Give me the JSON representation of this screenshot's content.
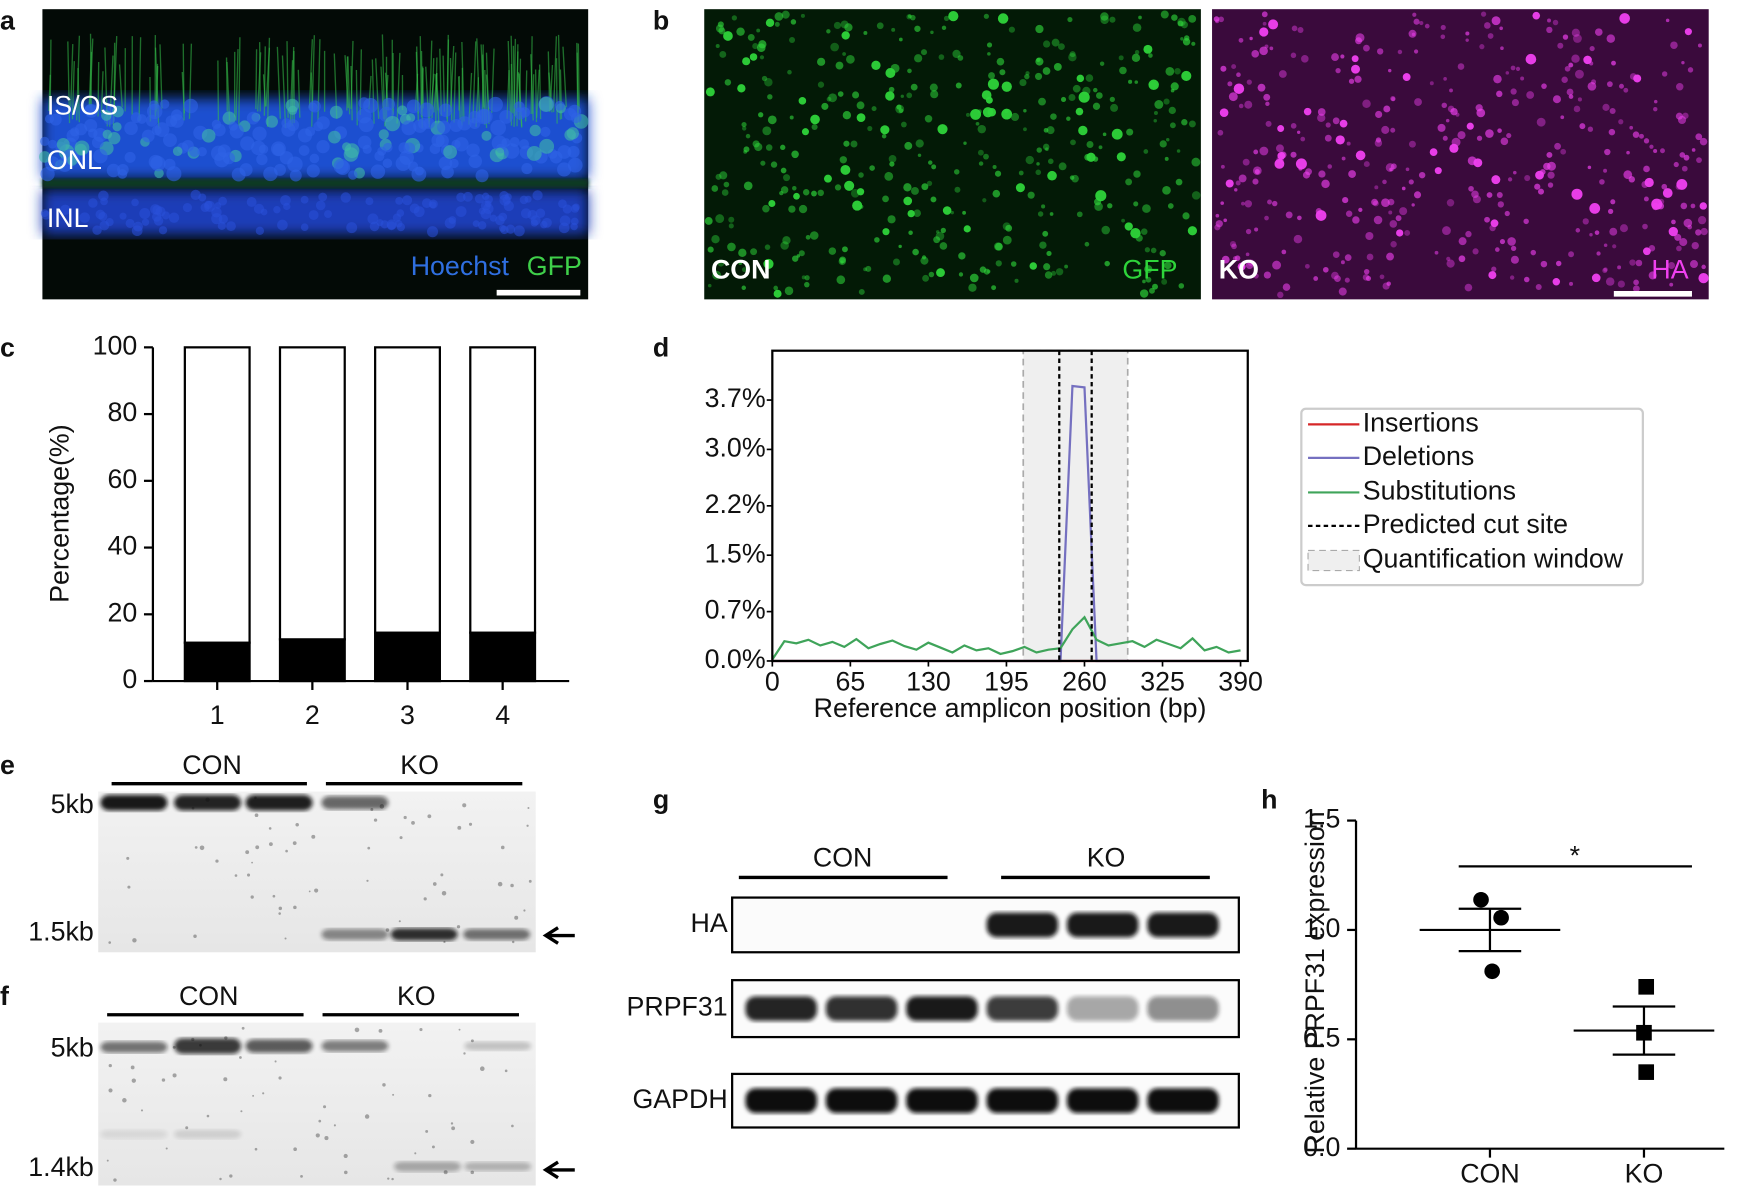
{
  "panels": {
    "a": {
      "label": "a",
      "layers": [
        "IS/OS",
        "ONL",
        "INL"
      ],
      "stains": [
        "Hoechst",
        "GFP"
      ]
    },
    "b": {
      "label": "b",
      "left": {
        "group": "CON",
        "stain": "GFP"
      },
      "right": {
        "group": "KO",
        "stain": "HA"
      }
    },
    "e": {
      "label": "e",
      "groups": [
        "CON",
        "KO"
      ],
      "markers": [
        "5kb",
        "1.5kb"
      ]
    },
    "f": {
      "label": "f",
      "groups": [
        "CON",
        "KO"
      ],
      "markers": [
        "5kb",
        "1.4kb"
      ]
    },
    "g": {
      "label": "g",
      "groups": [
        "CON",
        "KO"
      ],
      "rows": [
        "HA",
        "PRPF31",
        "GAPDH"
      ]
    }
  },
  "chart_data": [
    {
      "type": "bar",
      "panel": "c",
      "ylabel": "Percentage(%)",
      "categories": [
        "1",
        "2",
        "3",
        "4"
      ],
      "series": [
        {
          "color": "#000000",
          "values": [
            11.5,
            12.5,
            14.5,
            14.5
          ]
        },
        {
          "color": "#ffffff",
          "values": [
            88.5,
            87.5,
            85.5,
            85.5
          ]
        }
      ],
      "ylim": [
        0,
        100
      ],
      "yticks": [
        0,
        20,
        40,
        60,
        80,
        100
      ]
    },
    {
      "type": "line",
      "panel": "d",
      "xlabel": "Reference amplicon position (bp)",
      "x": [
        0,
        10,
        20,
        30,
        40,
        50,
        60,
        70,
        80,
        90,
        100,
        110,
        120,
        130,
        140,
        150,
        160,
        170,
        180,
        190,
        200,
        210,
        220,
        230,
        240,
        250,
        260,
        270,
        280,
        290,
        300,
        310,
        320,
        330,
        340,
        350,
        360,
        370,
        380,
        390
      ],
      "series": [
        {
          "name": "Insertions",
          "color": "#d62728",
          "values": [
            0,
            0,
            0,
            0,
            0,
            0,
            0,
            0,
            0,
            0,
            0,
            0,
            0,
            0,
            0,
            0,
            0,
            0,
            0,
            0,
            0,
            0,
            0,
            0,
            0,
            0,
            0,
            0,
            0,
            0,
            0,
            0,
            0,
            0,
            0,
            0,
            0,
            0,
            0,
            0
          ]
        },
        {
          "name": "Deletions",
          "color": "#7570c0",
          "values": [
            0,
            0,
            0,
            0,
            0,
            0,
            0,
            0,
            0,
            0,
            0,
            0,
            0,
            0,
            0,
            0,
            0,
            0,
            0,
            0,
            0,
            0,
            0,
            0,
            0,
            3.9,
            3.88,
            0,
            0,
            0,
            0,
            0,
            0,
            0,
            0,
            0,
            0,
            0,
            0,
            0
          ]
        },
        {
          "name": "Substitutions",
          "color": "#3fa45a",
          "values": [
            0.02,
            0.28,
            0.25,
            0.3,
            0.22,
            0.27,
            0.2,
            0.31,
            0.18,
            0.24,
            0.29,
            0.21,
            0.16,
            0.26,
            0.19,
            0.12,
            0.22,
            0.15,
            0.18,
            0.1,
            0.14,
            0.2,
            0.12,
            0.16,
            0.18,
            0.45,
            0.62,
            0.3,
            0.22,
            0.25,
            0.28,
            0.2,
            0.3,
            0.24,
            0.18,
            0.32,
            0.15,
            0.2,
            0.12,
            0.15
          ]
        }
      ],
      "cut_sites": [
        239,
        266
      ],
      "cut_site_label": "Predicted cut site",
      "quantification_window": [
        209,
        296
      ],
      "window_label": "Quantification window",
      "xlim": [
        0,
        396
      ],
      "xticks": [
        0,
        65,
        130,
        195,
        260,
        325,
        390
      ],
      "ylim": [
        0,
        4.4
      ],
      "yticks": [
        {
          "value": 0,
          "label": "0.0%"
        },
        {
          "value": 0.7,
          "label": "0.7%"
        },
        {
          "value": 1.5,
          "label": "1.5%"
        },
        {
          "value": 2.2,
          "label": "2.2%"
        },
        {
          "value": 3.0,
          "label": "3.0%"
        },
        {
          "value": 3.7,
          "label": "3.7%"
        }
      ]
    },
    {
      "type": "scatter",
      "panel": "h",
      "ylabel": "Relative PRPF31 expression",
      "categories": [
        "CON",
        "KO"
      ],
      "markers": [
        "circle",
        "square"
      ],
      "points": [
        [
          1.138,
          1.056,
          0.811
        ],
        [
          0.74,
          0.53,
          0.35
        ]
      ],
      "means": [
        1.0,
        0.54
      ],
      "sem": [
        0.097,
        0.11
      ],
      "significance": "*",
      "ylim": [
        0,
        1.5
      ],
      "yticks": [
        {
          "value": 0,
          "label": "0.0"
        },
        {
          "value": 0.5,
          "label": "0.5"
        },
        {
          "value": 1,
          "label": "1.0"
        },
        {
          "value": 1.5,
          "label": "1.5"
        }
      ]
    }
  ]
}
